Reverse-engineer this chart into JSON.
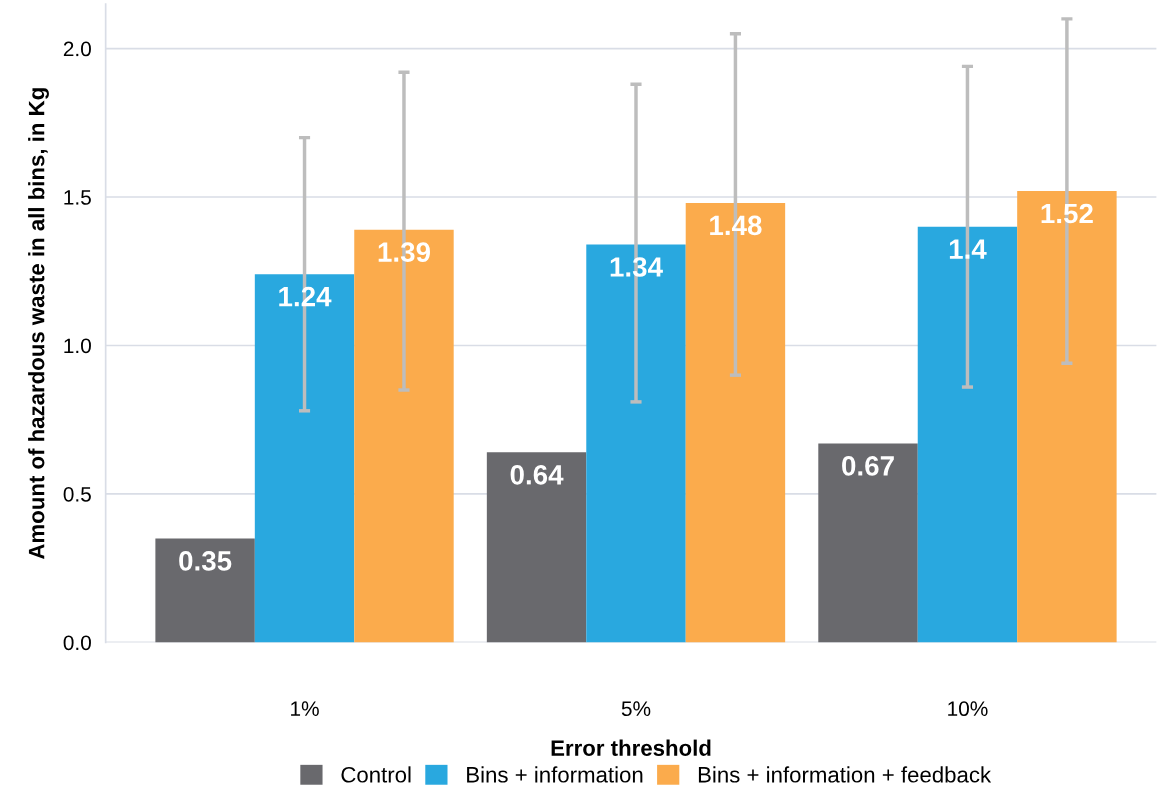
{
  "chart_data": {
    "type": "bar",
    "xlabel": "Error threshold",
    "ylabel": "Amount of hazardous waste in all bins, in Kg",
    "categories": [
      "1%",
      "5%",
      "10%"
    ],
    "series": [
      {
        "name": "Control",
        "color": "#69696d",
        "values": [
          0.35,
          0.64,
          0.67
        ],
        "errors": [
          null,
          null,
          null
        ]
      },
      {
        "name": "Bins + information",
        "color": "#29a8df",
        "values": [
          1.24,
          1.34,
          1.4
        ],
        "errors": [
          [
            0.78,
            1.7
          ],
          [
            0.81,
            1.88
          ],
          [
            0.86,
            1.94
          ]
        ]
      },
      {
        "name": "Bins + information + feedback",
        "color": "#fbab4c",
        "values": [
          1.39,
          1.48,
          1.52
        ],
        "errors": [
          [
            0.85,
            1.92
          ],
          [
            0.9,
            2.05
          ],
          [
            0.94,
            2.1
          ]
        ]
      }
    ],
    "ylim": [
      0,
      2.15
    ],
    "yticks": [
      {
        "value": 0,
        "label": "0.0"
      },
      0.5,
      {
        "value": 1,
        "label": "1.0"
      },
      1.5,
      {
        "value": 2,
        "label": "2.0"
      }
    ],
    "grid": "y",
    "legend": "bottom",
    "data_labels": true
  }
}
